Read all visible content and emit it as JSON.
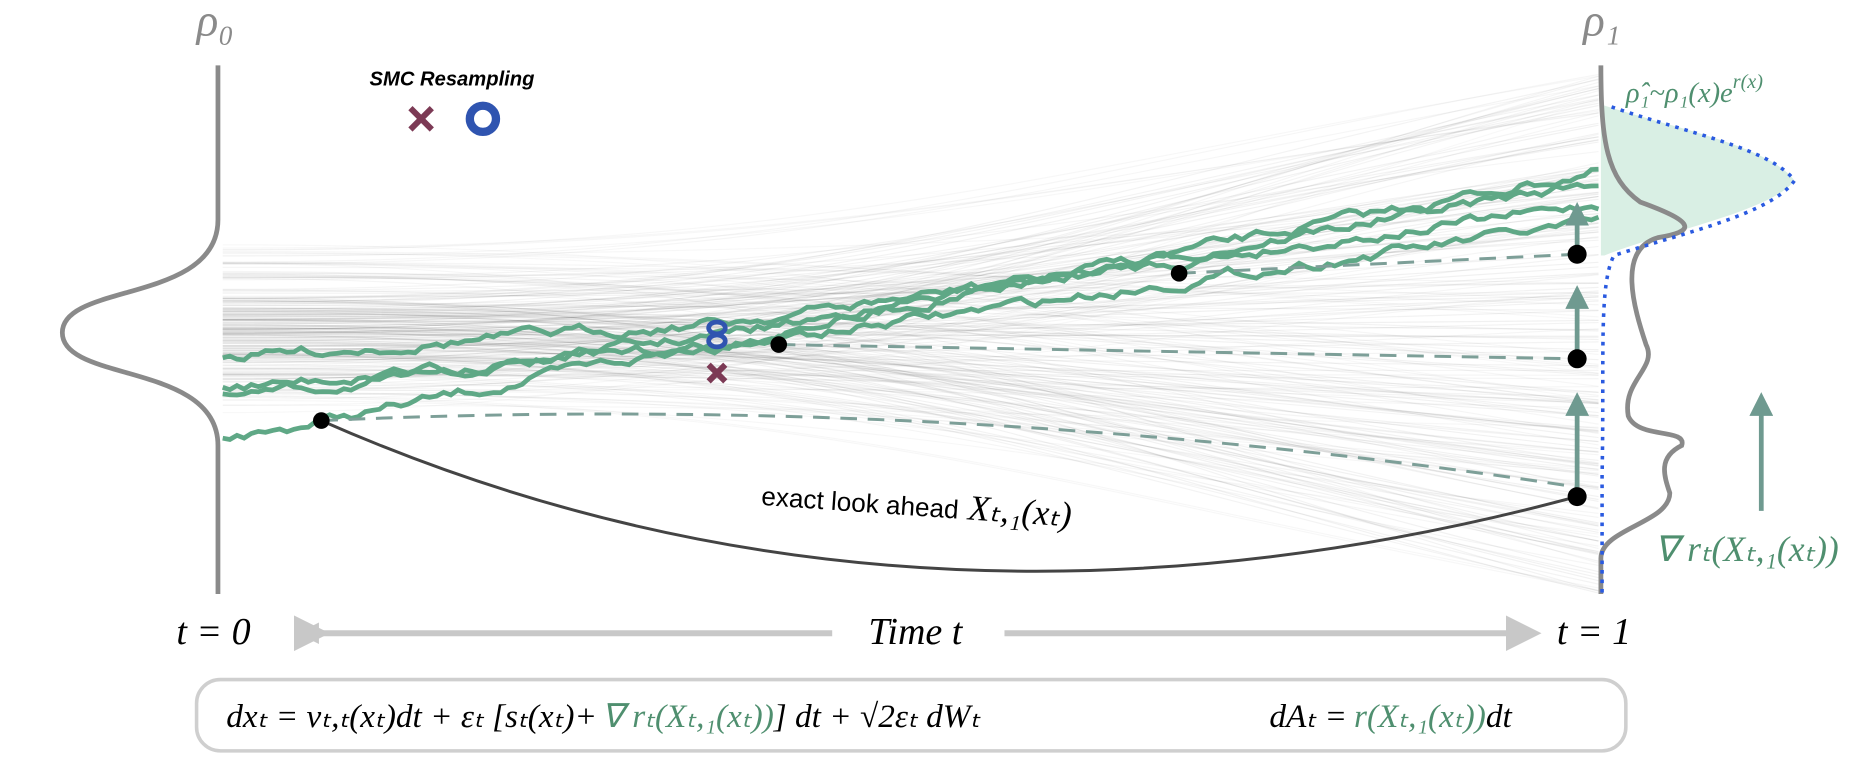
{
  "labels": {
    "rho0": "ρ₀",
    "rho1": "ρ₁",
    "smc": "SMC Resampling",
    "tilted": "ρ̂₁~ρ₁(x)e",
    "tilted_exp": "r(x)",
    "lookahead_text": "exact look ahead",
    "lookahead_math": "Xₜ,₁(xₜ)",
    "grad": "∇ rₜ(Xₜ,₁(xₜ))",
    "t0": "t = 0",
    "time": "Time t",
    "t1": "t = 1"
  },
  "equation": {
    "sde_part1": "dxₜ = vₜ,ₜ(xₜ)dt + εₜ [sₜ(xₜ)+",
    "sde_grad": "∇ rₜ(Xₜ,₁(xₜ))",
    "sde_part2": "] dt + √2εₜ dWₜ",
    "weight_part1": "dAₜ =",
    "weight_green": "r(Xₜ,₁(xₜ))",
    "weight_part2": "dt"
  }
}
